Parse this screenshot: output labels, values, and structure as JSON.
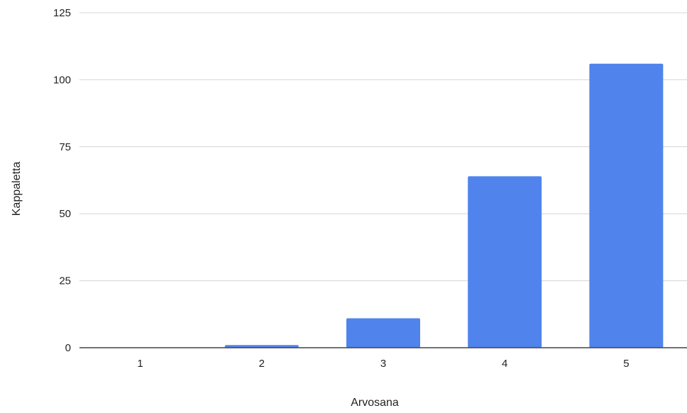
{
  "chart_data": {
    "type": "bar",
    "categories": [
      "1",
      "2",
      "3",
      "4",
      "5"
    ],
    "values": [
      0,
      1,
      11,
      64,
      106
    ],
    "title": "",
    "xlabel": "Arvosana",
    "ylabel": "Kappaletta",
    "ylim": [
      0,
      125
    ],
    "yticks": [
      "0",
      "25",
      "50",
      "75",
      "100",
      "125"
    ],
    "grid": true,
    "legend": "none",
    "colors": {
      "bar": "#5084ec",
      "grid": "#d4d4d4",
      "axis": "#444444",
      "text": "#222222"
    }
  }
}
